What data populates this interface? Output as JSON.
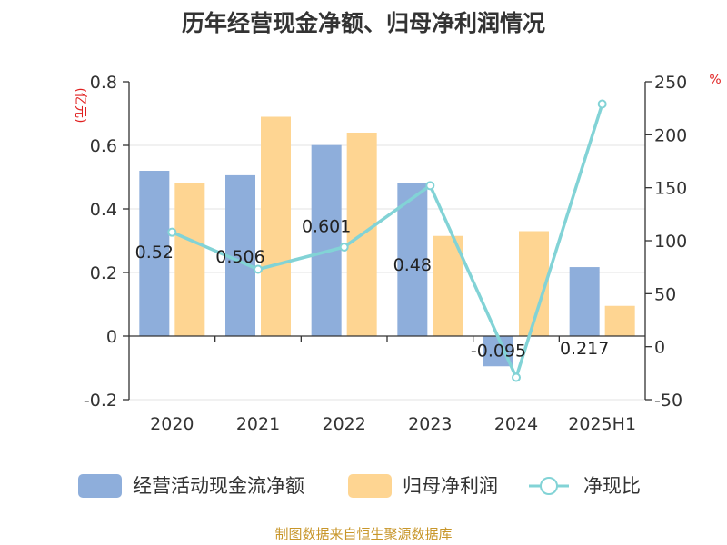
{
  "chart_data": {
    "type": "bar",
    "title": "历年经营现金净额、归母净利润情况",
    "categories": [
      "2020",
      "2021",
      "2022",
      "2023",
      "2024",
      "2025H1"
    ],
    "series": [
      {
        "name": "经营活动现金流净额",
        "values": [
          0.52,
          0.506,
          0.601,
          0.48,
          -0.095,
          0.217
        ],
        "color": "#8eaedb",
        "axis": "left",
        "type": "bar"
      },
      {
        "name": "归母净利润",
        "values": [
          0.48,
          0.69,
          0.64,
          0.315,
          0.33,
          0.095
        ],
        "color": "#fed592",
        "axis": "left",
        "type": "bar"
      },
      {
        "name": "净现比",
        "values": [
          108,
          73,
          94,
          152,
          -29,
          229
        ],
        "color": "#82d3d6",
        "axis": "right",
        "type": "line"
      }
    ],
    "data_labels": [
      "0.52",
      "0.506",
      "0.601",
      "0.48",
      "-0.095",
      "0.217"
    ],
    "y_left": {
      "label": "(亿元)",
      "ylim": [
        -0.2,
        0.8
      ],
      "ticks": [
        "-0.2",
        "0",
        "0.2",
        "0.4",
        "0.6",
        "0.8"
      ],
      "tick_values": [
        -0.2,
        0,
        0.2,
        0.4,
        0.6,
        0.8
      ]
    },
    "y_right": {
      "label": "%",
      "ylim": [
        -50,
        250
      ],
      "ticks": [
        "-50",
        "0",
        "50",
        "100",
        "150",
        "200",
        "250"
      ],
      "tick_values": [
        -50,
        0,
        50,
        100,
        150,
        200,
        250
      ]
    },
    "grid": true,
    "legend_position": "bottom"
  },
  "source": "制图数据来自恒生聚源数据库",
  "colors": {
    "axis_unit": "#e02020",
    "source": "#c8962a",
    "grid": "#e3e3e3",
    "axis": "#333333"
  }
}
